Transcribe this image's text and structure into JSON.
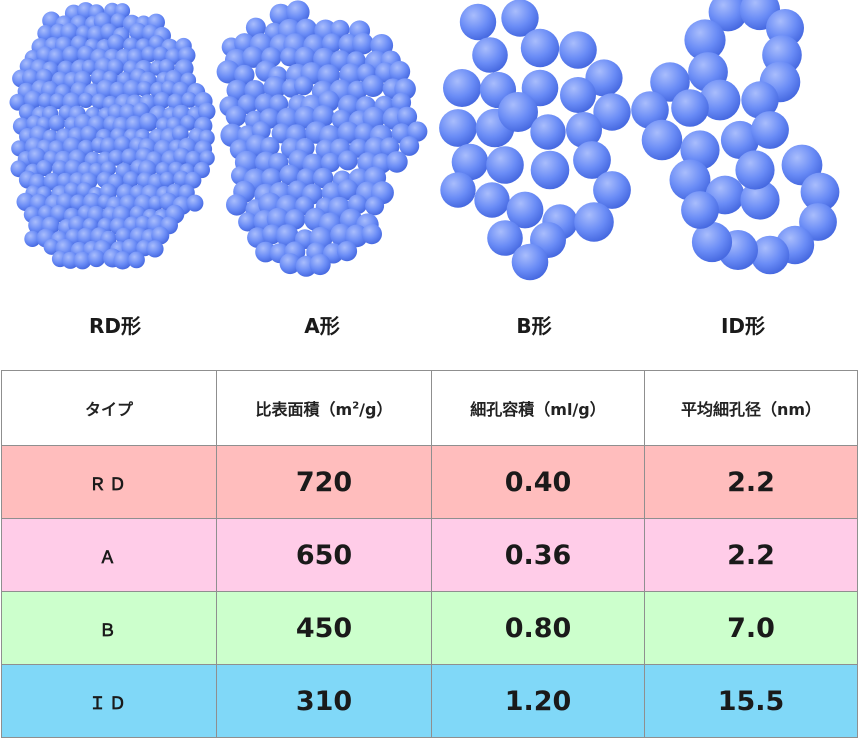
{
  "figures": {
    "particle_color": "#5b7ef5",
    "particle_highlight": "#9fb4fb",
    "particle_shadow": "#3f5fd8",
    "items": [
      {
        "label": "RD形"
      },
      {
        "label": "A形"
      },
      {
        "label": "B形"
      },
      {
        "label": "ID形"
      }
    ]
  },
  "table": {
    "headers": {
      "type": "タイプ",
      "surface_area": "比表面積（m",
      "surface_area_sup": "2",
      "surface_area_tail": "/g）",
      "pore_volume": "細孔容積（ml/g）",
      "pore_diameter": "平均細孔径（nm）"
    },
    "rows": [
      {
        "type": "ＲＤ",
        "surface_area": "720",
        "pore_volume": "0.40",
        "pore_diameter": "2.2",
        "color": "#ffbdbd"
      },
      {
        "type": "Ａ",
        "surface_area": "650",
        "pore_volume": "0.36",
        "pore_diameter": "2.2",
        "color": "#ffcce8"
      },
      {
        "type": "Ｂ",
        "surface_area": "450",
        "pore_volume": "0.80",
        "pore_diameter": "7.0",
        "color": "#ccffcc"
      },
      {
        "type": "ＩＤ",
        "surface_area": "310",
        "pore_volume": "1.20",
        "pore_diameter": "15.5",
        "color": "#80d8f8"
      }
    ]
  }
}
